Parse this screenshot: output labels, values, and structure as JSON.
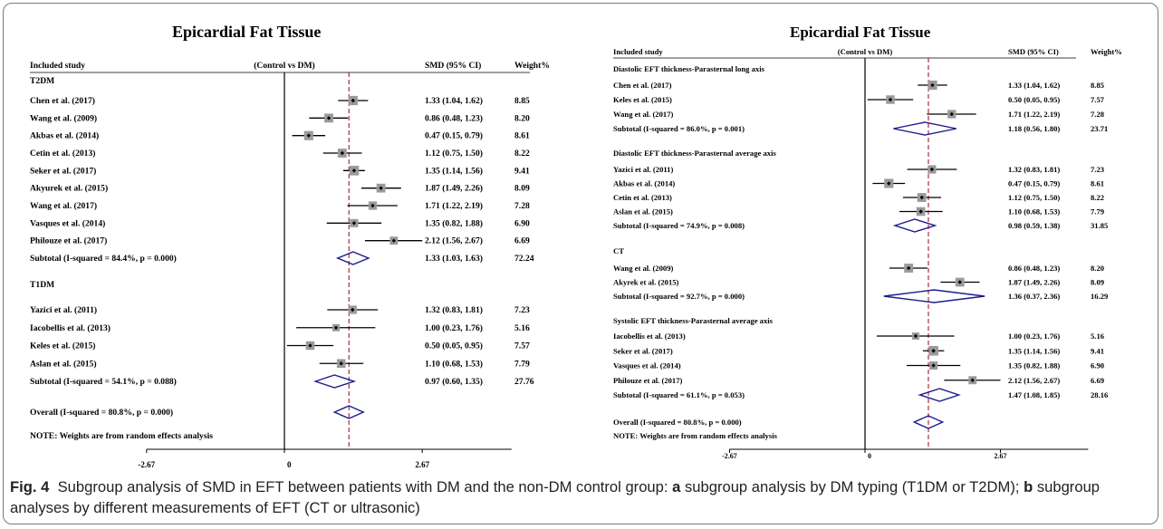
{
  "caption": {
    "fig_label": "Fig. 4",
    "t1": "Subgroup analysis of SMD in EFT between patients with DM and the non-DM control group: ",
    "a": "a",
    "t2": " subgroup analysis by DM typing (T1DM or T2DM); ",
    "b": "b",
    "t3": " subgroup analyses by different measurements of EFT (CT or ultrasonic)"
  },
  "chart_data": [
    {
      "type": "forest",
      "title": "Epicardial Fat Tissue",
      "header": {
        "study": "Included study",
        "comparison": "(Control vs DM)",
        "smd": "SMD (95% CI)",
        "weight": "Weight%"
      },
      "xticks": [
        -2.67,
        0,
        2.67
      ],
      "tick_labels": [
        "-2.67",
        "0",
        "2.67"
      ],
      "xlim": [
        -2.67,
        4.4
      ],
      "overall_line": 1.25,
      "note": "NOTE: Weights are from random effects analysis",
      "groups": [
        {
          "label": "T2DM",
          "studies": [
            {
              "name": "Chen et al. (2017)",
              "smd": 1.33,
              "lo": 1.04,
              "hi": 1.62,
              "ci": "1.33 (1.04, 1.62)",
              "weight": "8.85"
            },
            {
              "name": "Wang et al. (2009)",
              "smd": 0.86,
              "lo": 0.48,
              "hi": 1.23,
              "ci": "0.86 (0.48, 1.23)",
              "weight": "8.20"
            },
            {
              "name": "Akbas et al. (2014)",
              "smd": 0.47,
              "lo": 0.15,
              "hi": 0.79,
              "ci": "0.47 (0.15, 0.79)",
              "weight": "8.61"
            },
            {
              "name": "Cetin et al. (2013)",
              "smd": 1.12,
              "lo": 0.75,
              "hi": 1.5,
              "ci": "1.12 (0.75, 1.50)",
              "weight": "8.22"
            },
            {
              "name": "Seker et al. (2017)",
              "smd": 1.35,
              "lo": 1.14,
              "hi": 1.56,
              "ci": "1.35 (1.14, 1.56)",
              "weight": "9.41"
            },
            {
              "name": "Akyurek et al. (2015)",
              "smd": 1.87,
              "lo": 1.49,
              "hi": 2.26,
              "ci": "1.87 (1.49, 2.26)",
              "weight": "8.09"
            },
            {
              "name": "Wang et al. (2017)",
              "smd": 1.71,
              "lo": 1.22,
              "hi": 2.19,
              "ci": "1.71 (1.22, 2.19)",
              "weight": "7.28"
            },
            {
              "name": "Vasques et al. (2014)",
              "smd": 1.35,
              "lo": 0.82,
              "hi": 1.88,
              "ci": "1.35 (0.82, 1.88)",
              "weight": "6.90"
            },
            {
              "name": "Philouze et al. (2017)",
              "smd": 2.12,
              "lo": 1.56,
              "hi": 2.67,
              "ci": "2.12 (1.56, 2.67)",
              "weight": "6.69"
            }
          ],
          "subtotal": {
            "label": "Subtotal (I-squared = 84.4%, p = 0.000)",
            "smd": 1.33,
            "lo": 1.03,
            "hi": 1.63,
            "ci": "1.33 (1.03, 1.63)",
            "weight": "72.24"
          }
        },
        {
          "label": "T1DM",
          "studies": [
            {
              "name": "Yazici et al. (2011)",
              "smd": 1.32,
              "lo": 0.83,
              "hi": 1.81,
              "ci": "1.32 (0.83, 1.81)",
              "weight": "7.23"
            },
            {
              "name": "Iacobellis et al. (2013)",
              "smd": 1.0,
              "lo": 0.23,
              "hi": 1.76,
              "ci": "1.00 (0.23, 1.76)",
              "weight": "5.16"
            },
            {
              "name": "Keles et al. (2015)",
              "smd": 0.5,
              "lo": 0.05,
              "hi": 0.95,
              "ci": "0.50 (0.05, 0.95)",
              "weight": "7.57"
            },
            {
              "name": "Aslan et al. (2015)",
              "smd": 1.1,
              "lo": 0.68,
              "hi": 1.53,
              "ci": "1.10 (0.68, 1.53)",
              "weight": "7.79"
            }
          ],
          "subtotal": {
            "label": "Subtotal (I-squared = 54.1%, p = 0.088)",
            "smd": 0.97,
            "lo": 0.6,
            "hi": 1.35,
            "ci": "0.97 (0.60, 1.35)",
            "weight": "27.76"
          }
        }
      ],
      "overall": {
        "label": "Overall (I-squared = 80.8%, p = 0.000)",
        "smd": 1.25,
        "lo": 0.97,
        "hi": 1.53
      }
    },
    {
      "type": "forest",
      "title": "Epicardial Fat Tissue",
      "header": {
        "study": "Included study",
        "comparison": "(Control vs DM)",
        "smd": "SMD (95% CI)",
        "weight": "Weight%"
      },
      "xticks": [
        -2.67,
        0,
        2.67
      ],
      "tick_labels": [
        "-2.67",
        "0",
        "2.67"
      ],
      "xlim": [
        -2.67,
        4.4
      ],
      "overall_line": 1.25,
      "note": "NOTE: Weights are from random effects analysis",
      "groups": [
        {
          "label": "Diastolic EFT thickness-Parasternal long axis",
          "studies": [
            {
              "name": "Chen et al. (2017)",
              "smd": 1.33,
              "lo": 1.04,
              "hi": 1.62,
              "ci": "1.33 (1.04, 1.62)",
              "weight": "8.85"
            },
            {
              "name": "Keles et al. (2015)",
              "smd": 0.5,
              "lo": 0.05,
              "hi": 0.95,
              "ci": "0.50 (0.05, 0.95)",
              "weight": "7.57"
            },
            {
              "name": "Wang et al. (2017)",
              "smd": 1.71,
              "lo": 1.22,
              "hi": 2.19,
              "ci": "1.71 (1.22, 2.19)",
              "weight": "7.28"
            }
          ],
          "subtotal": {
            "label": "Subtotal (I-squared = 86.0%, p = 0.001)",
            "smd": 1.18,
            "lo": 0.56,
            "hi": 1.8,
            "ci": "1.18 (0.56, 1.80)",
            "weight": "23.71"
          }
        },
        {
          "label": "Diastolic EFT thickness-Parasternal average axis",
          "studies": [
            {
              "name": "Yazici et al. (2011)",
              "smd": 1.32,
              "lo": 0.83,
              "hi": 1.81,
              "ci": "1.32 (0.83, 1.81)",
              "weight": "7.23"
            },
            {
              "name": "Akbas et al. (2014)",
              "smd": 0.47,
              "lo": 0.15,
              "hi": 0.79,
              "ci": "0.47 (0.15, 0.79)",
              "weight": "8.61"
            },
            {
              "name": "Cetin et al. (2013)",
              "smd": 1.12,
              "lo": 0.75,
              "hi": 1.5,
              "ci": "1.12 (0.75, 1.50)",
              "weight": "8.22"
            },
            {
              "name": "Aslan et al. (2015)",
              "smd": 1.1,
              "lo": 0.68,
              "hi": 1.53,
              "ci": "1.10 (0.68, 1.53)",
              "weight": "7.79"
            }
          ],
          "subtotal": {
            "label": "Subtotal (I-squared = 74.9%, p = 0.008)",
            "smd": 0.98,
            "lo": 0.59,
            "hi": 1.38,
            "ci": "0.98 (0.59, 1.38)",
            "weight": "31.85"
          }
        },
        {
          "label": "CT",
          "studies": [
            {
              "name": "Wang et al. (2009)",
              "smd": 0.86,
              "lo": 0.48,
              "hi": 1.23,
              "ci": "0.86 (0.48, 1.23)",
              "weight": "8.20"
            },
            {
              "name": "Akyrek et al. (2015)",
              "smd": 1.87,
              "lo": 1.49,
              "hi": 2.26,
              "ci": "1.87 (1.49, 2.26)",
              "weight": "8.09"
            }
          ],
          "subtotal": {
            "label": "Subtotal (I-squared = 92.7%, p = 0.000)",
            "smd": 1.36,
            "lo": 0.37,
            "hi": 2.36,
            "ci": "1.36 (0.37, 2.36)",
            "weight": "16.29"
          }
        },
        {
          "label": "Systolic EFT thickness-Parasternal average axis",
          "studies": [
            {
              "name": "Iacobellis et al. (2013)",
              "smd": 1.0,
              "lo": 0.23,
              "hi": 1.76,
              "ci": "1.00 (0.23, 1.76)",
              "weight": "5.16"
            },
            {
              "name": "Seker et al. (2017)",
              "smd": 1.35,
              "lo": 1.14,
              "hi": 1.56,
              "ci": "1.35 (1.14, 1.56)",
              "weight": "9.41"
            },
            {
              "name": "Vasques et al. (2014)",
              "smd": 1.35,
              "lo": 0.82,
              "hi": 1.88,
              "ci": "1.35 (0.82, 1.88)",
              "weight": "6.90"
            },
            {
              "name": "Philouze et al. (2017)",
              "smd": 2.12,
              "lo": 1.56,
              "hi": 2.67,
              "ci": "2.12 (1.56, 2.67)",
              "weight": "6.69"
            }
          ],
          "subtotal": {
            "label": "Subtotal (I-squared = 61.1%, p = 0.053)",
            "smd": 1.47,
            "lo": 1.08,
            "hi": 1.85,
            "ci": "1.47 (1.08, 1.85)",
            "weight": "28.16"
          }
        }
      ],
      "overall": {
        "label": "Overall (I-squared = 80.8%, p = 0.000)",
        "smd": 1.25,
        "lo": 0.97,
        "hi": 1.53
      }
    }
  ]
}
